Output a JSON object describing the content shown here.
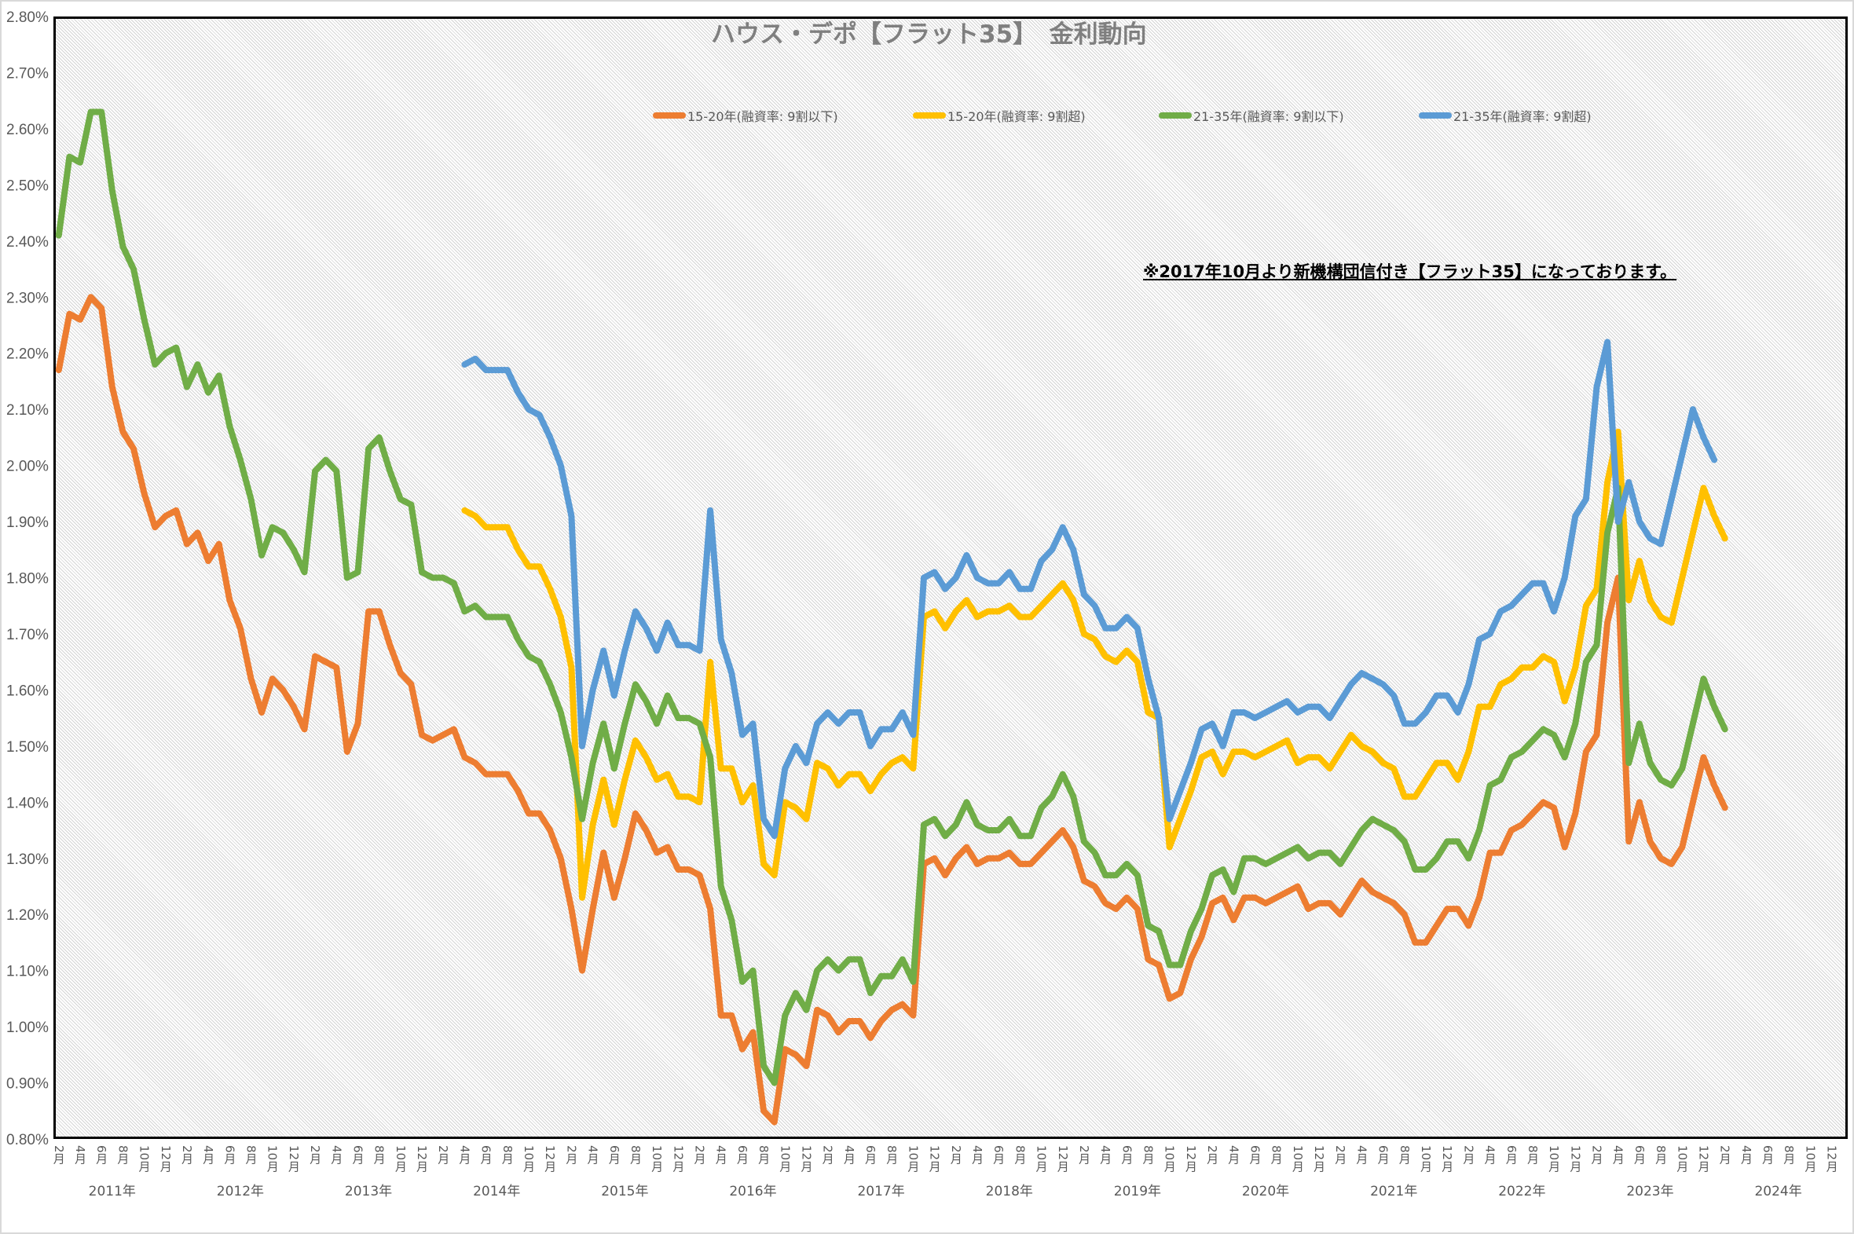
{
  "chart_data": {
    "type": "line",
    "title": "ハウス・デポ【フラット35】　金利動向",
    "annotation": "※2017年10月より新機構団信付き【フラット35】になっております。",
    "x_start": "2011年2月",
    "x_unit": "month",
    "ylim": [
      0.8,
      2.8
    ],
    "y_ticks": [
      "0.80%",
      "0.90%",
      "1.00%",
      "1.10%",
      "1.20%",
      "1.30%",
      "1.40%",
      "1.50%",
      "1.60%",
      "1.70%",
      "1.80%",
      "1.90%",
      "2.00%",
      "2.10%",
      "2.20%",
      "2.30%",
      "2.40%",
      "2.50%",
      "2.60%",
      "2.70%",
      "2.80%"
    ],
    "month_labels": [
      "2月",
      "4月",
      "6月",
      "8月",
      "10月",
      "12月",
      "2月",
      "4月",
      "6月",
      "8月",
      "10月",
      "12月",
      "2月",
      "4月",
      "6月",
      "8月",
      "10月",
      "12月",
      "2月",
      "4月",
      "6月",
      "8月",
      "10月",
      "12月",
      "2月",
      "4月",
      "6月",
      "8月",
      "10月",
      "12月",
      "2月",
      "4月",
      "6月",
      "8月",
      "10月",
      "12月",
      "2月",
      "4月",
      "6月",
      "8月",
      "10月",
      "12月",
      "2月",
      "4月",
      "6月",
      "8月",
      "10月",
      "12月",
      "2月",
      "4月",
      "6月",
      "8月",
      "10月",
      "12月",
      "2月",
      "4月",
      "6月",
      "8月",
      "10月",
      "12月",
      "2月",
      "4月",
      "6月",
      "8月",
      "10月",
      "12月",
      "2月",
      "4月",
      "6月",
      "8月",
      "10月",
      "12月",
      "2月",
      "4月",
      "6月",
      "8月",
      "10月",
      "12月",
      "2月",
      "4月",
      "6月",
      "8月",
      "10月",
      "12月"
    ],
    "year_labels": [
      "2011年",
      "2012年",
      "2013年",
      "2014年",
      "2015年",
      "2016年",
      "2017年",
      "2018年",
      "2019年",
      "2020年",
      "2021年",
      "2022年",
      "2023年",
      "2024年"
    ],
    "grid": false,
    "legend_position": "top-center",
    "series": [
      {
        "name": "15-20年(融資率: 9割以下)",
        "color": "#ED7D31",
        "values": [
          2.17,
          2.27,
          2.26,
          2.3,
          2.28,
          2.14,
          2.06,
          2.03,
          1.95,
          1.89,
          1.91,
          1.92,
          1.86,
          1.88,
          1.83,
          1.86,
          1.76,
          1.71,
          1.62,
          1.56,
          1.62,
          1.6,
          1.57,
          1.53,
          1.66,
          1.65,
          1.64,
          1.49,
          1.54,
          1.74,
          1.74,
          1.68,
          1.63,
          1.61,
          1.52,
          1.51,
          1.52,
          1.53,
          1.48,
          1.47,
          1.45,
          1.45,
          1.45,
          1.42,
          1.38,
          1.38,
          1.35,
          1.3,
          1.21,
          1.1,
          1.21,
          1.31,
          1.23,
          1.3,
          1.38,
          1.35,
          1.31,
          1.32,
          1.28,
          1.28,
          1.27,
          1.21,
          1.02,
          1.02,
          0.96,
          0.99,
          0.85,
          0.83,
          0.96,
          0.95,
          0.93,
          1.03,
          1.02,
          0.99,
          1.01,
          1.01,
          0.98,
          1.01,
          1.03,
          1.04,
          1.02,
          1.29,
          1.3,
          1.27,
          1.3,
          1.32,
          1.29,
          1.3,
          1.3,
          1.31,
          1.29,
          1.29,
          1.31,
          1.33,
          1.35,
          1.32,
          1.26,
          1.25,
          1.22,
          1.21,
          1.23,
          1.21,
          1.12,
          1.11,
          1.05,
          1.06,
          1.12,
          1.16,
          1.22,
          1.23,
          1.19,
          1.23,
          1.23,
          1.22,
          1.23,
          1.24,
          1.25,
          1.21,
          1.22,
          1.22,
          1.2,
          1.23,
          1.26,
          1.24,
          1.23,
          1.22,
          1.2,
          1.15,
          1.15,
          1.18,
          1.21,
          1.21,
          1.18,
          1.23,
          1.31,
          1.31,
          1.35,
          1.36,
          1.38,
          1.4,
          1.39,
          1.32,
          1.38,
          1.49,
          1.52,
          1.72,
          1.8,
          1.33,
          1.4,
          1.33,
          1.3,
          1.29,
          1.32,
          1.4,
          1.48,
          1.43,
          1.39
        ]
      },
      {
        "name": "15-20年(融資率: 9割超)",
        "color": "#FFC000",
        "values": [
          null,
          null,
          null,
          null,
          null,
          null,
          null,
          null,
          null,
          null,
          null,
          null,
          null,
          null,
          null,
          null,
          null,
          null,
          null,
          null,
          null,
          null,
          null,
          null,
          null,
          null,
          null,
          null,
          null,
          null,
          null,
          null,
          null,
          null,
          null,
          null,
          null,
          null,
          1.92,
          1.91,
          1.89,
          1.89,
          1.89,
          1.85,
          1.82,
          1.82,
          1.78,
          1.73,
          1.64,
          1.23,
          1.36,
          1.44,
          1.36,
          1.44,
          1.51,
          1.48,
          1.44,
          1.45,
          1.41,
          1.41,
          1.4,
          1.65,
          1.46,
          1.46,
          1.4,
          1.43,
          1.29,
          1.27,
          1.4,
          1.39,
          1.37,
          1.47,
          1.46,
          1.43,
          1.45,
          1.45,
          1.42,
          1.45,
          1.47,
          1.48,
          1.46,
          1.73,
          1.74,
          1.71,
          1.74,
          1.76,
          1.73,
          1.74,
          1.74,
          1.75,
          1.73,
          1.73,
          1.75,
          1.77,
          1.79,
          1.76,
          1.7,
          1.69,
          1.66,
          1.65,
          1.67,
          1.65,
          1.56,
          1.55,
          1.32,
          1.37,
          1.42,
          1.48,
          1.49,
          1.45,
          1.49,
          1.49,
          1.48,
          1.49,
          1.5,
          1.51,
          1.47,
          1.48,
          1.48,
          1.46,
          1.49,
          1.52,
          1.5,
          1.49,
          1.47,
          1.46,
          1.41,
          1.41,
          1.44,
          1.47,
          1.47,
          1.44,
          1.49,
          1.57,
          1.57,
          1.61,
          1.62,
          1.64,
          1.64,
          1.66,
          1.65,
          1.58,
          1.64,
          1.75,
          1.78,
          1.97,
          2.06,
          1.76,
          1.83,
          1.76,
          1.73,
          1.72,
          1.8,
          1.88,
          1.96,
          1.91,
          1.87
        ]
      },
      {
        "name": "21-35年(融資率: 9割以下)",
        "color": "#70AD47",
        "values": [
          2.41,
          2.55,
          2.54,
          2.63,
          2.63,
          2.49,
          2.39,
          2.35,
          2.26,
          2.18,
          2.2,
          2.21,
          2.14,
          2.18,
          2.13,
          2.16,
          2.07,
          2.01,
          1.94,
          1.84,
          1.89,
          1.88,
          1.85,
          1.81,
          1.99,
          2.01,
          1.99,
          1.8,
          1.81,
          2.03,
          2.05,
          1.99,
          1.94,
          1.93,
          1.81,
          1.8,
          1.8,
          1.79,
          1.74,
          1.75,
          1.73,
          1.73,
          1.73,
          1.69,
          1.66,
          1.65,
          1.61,
          1.56,
          1.48,
          1.37,
          1.47,
          1.54,
          1.46,
          1.54,
          1.61,
          1.58,
          1.54,
          1.59,
          1.55,
          1.55,
          1.54,
          1.48,
          1.25,
          1.19,
          1.08,
          1.1,
          0.93,
          0.9,
          1.02,
          1.06,
          1.03,
          1.1,
          1.12,
          1.1,
          1.12,
          1.12,
          1.06,
          1.09,
          1.09,
          1.12,
          1.08,
          1.36,
          1.37,
          1.34,
          1.36,
          1.4,
          1.36,
          1.35,
          1.35,
          1.37,
          1.34,
          1.34,
          1.39,
          1.41,
          1.45,
          1.41,
          1.33,
          1.31,
          1.27,
          1.27,
          1.29,
          1.27,
          1.18,
          1.17,
          1.11,
          1.11,
          1.17,
          1.21,
          1.27,
          1.28,
          1.24,
          1.3,
          1.3,
          1.29,
          1.3,
          1.31,
          1.32,
          1.3,
          1.31,
          1.31,
          1.29,
          1.32,
          1.35,
          1.37,
          1.36,
          1.35,
          1.33,
          1.28,
          1.28,
          1.3,
          1.33,
          1.33,
          1.3,
          1.35,
          1.43,
          1.44,
          1.48,
          1.49,
          1.51,
          1.53,
          1.52,
          1.48,
          1.54,
          1.65,
          1.68,
          1.88,
          1.96,
          1.47,
          1.54,
          1.47,
          1.44,
          1.43,
          1.46,
          1.54,
          1.62,
          1.57,
          1.53
        ]
      },
      {
        "name": "21-35年(融資率: 9割超)",
        "color": "#5B9BD5",
        "values": [
          null,
          null,
          null,
          null,
          null,
          null,
          null,
          null,
          null,
          null,
          null,
          null,
          null,
          null,
          null,
          null,
          null,
          null,
          null,
          null,
          null,
          null,
          null,
          null,
          null,
          null,
          null,
          null,
          null,
          null,
          null,
          null,
          null,
          null,
          null,
          null,
          null,
          null,
          2.18,
          2.19,
          2.17,
          2.17,
          2.17,
          2.13,
          2.1,
          2.09,
          2.05,
          2.0,
          1.91,
          1.5,
          1.6,
          1.67,
          1.59,
          1.67,
          1.74,
          1.71,
          1.67,
          1.72,
          1.68,
          1.68,
          1.67,
          1.92,
          1.69,
          1.63,
          1.52,
          1.54,
          1.37,
          1.34,
          1.46,
          1.5,
          1.47,
          1.54,
          1.56,
          1.54,
          1.56,
          1.56,
          1.5,
          1.53,
          1.53,
          1.56,
          1.52,
          1.8,
          1.81,
          1.78,
          1.8,
          1.84,
          1.8,
          1.79,
          1.79,
          1.81,
          1.78,
          1.78,
          1.83,
          1.85,
          1.89,
          1.85,
          1.77,
          1.75,
          1.71,
          1.71,
          1.73,
          1.71,
          1.62,
          1.55,
          1.37,
          1.42,
          1.47,
          1.53,
          1.54,
          1.5,
          1.56,
          1.56,
          1.55,
          1.56,
          1.57,
          1.58,
          1.56,
          1.57,
          1.57,
          1.55,
          1.58,
          1.61,
          1.63,
          1.62,
          1.61,
          1.59,
          1.54,
          1.54,
          1.56,
          1.59,
          1.59,
          1.56,
          1.61,
          1.69,
          1.7,
          1.74,
          1.75,
          1.77,
          1.79,
          1.79,
          1.74,
          1.8,
          1.91,
          1.94,
          2.14,
          2.22,
          1.9,
          1.97,
          1.9,
          1.87,
          1.86,
          1.94,
          2.02,
          2.1,
          2.05,
          2.01
        ]
      }
    ]
  }
}
